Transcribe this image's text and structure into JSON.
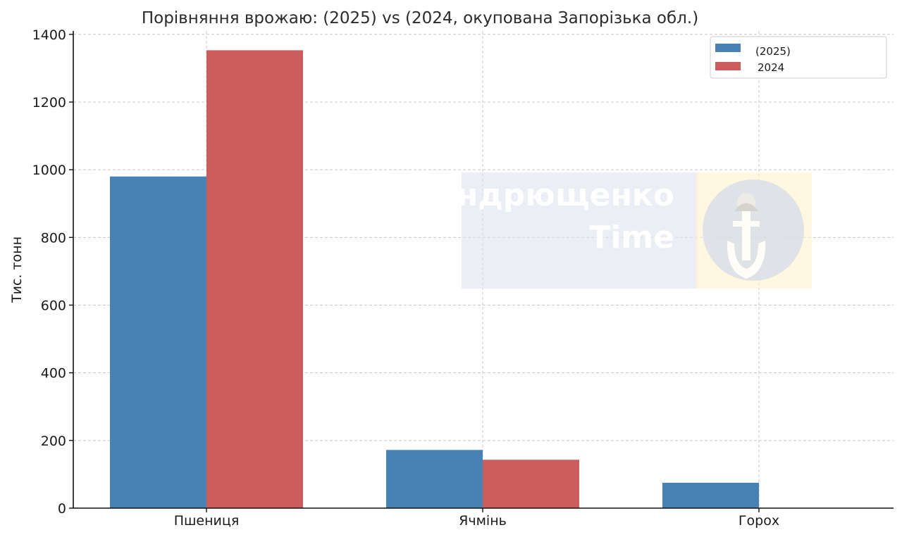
{
  "chart_data": {
    "type": "bar",
    "title": "Порівняння врожаю: (2025) vs (2024, окупована Запорізька обл.)",
    "xlabel": "",
    "ylabel": "Тис. тонн",
    "categories": [
      "Пшениця",
      "Ячмінь",
      "Горох"
    ],
    "series": [
      {
        "name": "(2025)",
        "color": "#4682b4",
        "values": [
          980,
          172,
          75
        ]
      },
      {
        "name": "2024",
        "color": "#cd5c5c",
        "values": [
          1353,
          143,
          0
        ]
      }
    ],
    "ylim": [
      0,
      1410
    ],
    "yticks": [
      0,
      200,
      400,
      600,
      800,
      1000,
      1200,
      1400
    ],
    "grid": true,
    "legend_position": "top-right"
  },
  "watermark": {
    "line1": "Андрющенко",
    "line2": "Time",
    "logo_icon": "anchor-helmet-emblem-icon"
  }
}
